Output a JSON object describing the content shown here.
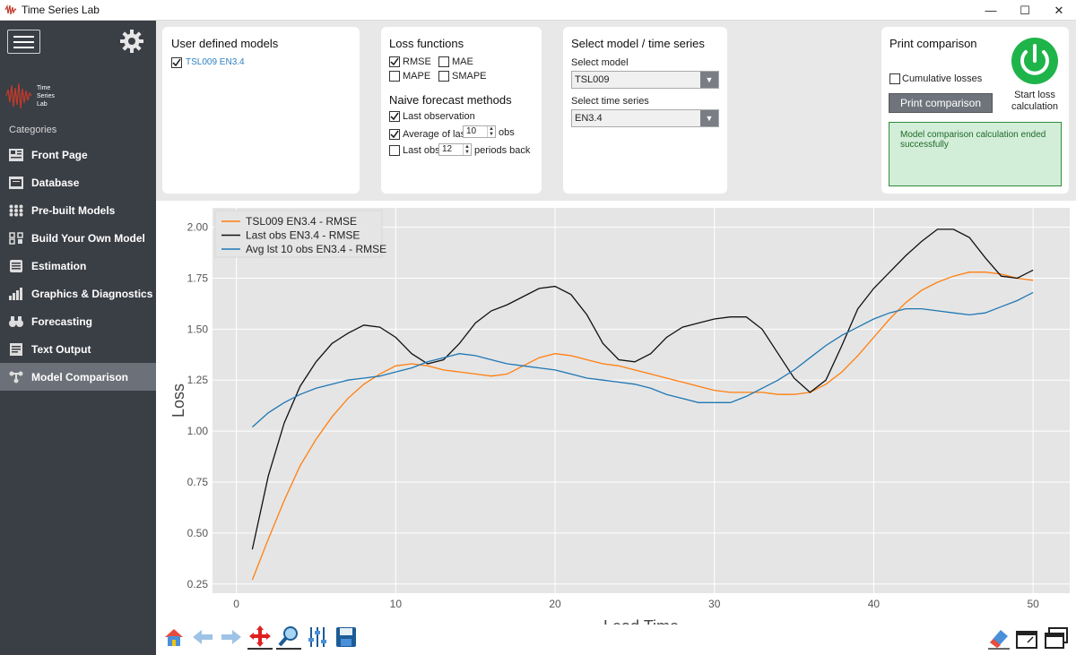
{
  "window": {
    "title": "Time Series Lab",
    "min": "—",
    "max": "☐",
    "close": "✕"
  },
  "sidebar": {
    "logo_text": [
      "Time",
      "Series",
      "Lab"
    ],
    "categories_label": "Categories",
    "items": [
      {
        "label": "Front Page",
        "icon": "front-page-icon"
      },
      {
        "label": "Database",
        "icon": "database-icon"
      },
      {
        "label": "Pre-built Models",
        "icon": "grid-icon"
      },
      {
        "label": "Build Your Own Model",
        "icon": "build-icon"
      },
      {
        "label": "Estimation",
        "icon": "estimation-icon"
      },
      {
        "label": "Graphics & Diagnostics",
        "icon": "bar-chart-icon"
      },
      {
        "label": "Forecasting",
        "icon": "binoculars-icon"
      },
      {
        "label": "Text Output",
        "icon": "text-output-icon"
      },
      {
        "label": "Model Comparison",
        "icon": "model-comparison-icon"
      }
    ]
  },
  "user_models": {
    "title": "User defined models",
    "items": [
      "TSL009 EN3.4"
    ]
  },
  "loss": {
    "title": "Loss functions",
    "rmse": "RMSE",
    "mae": "MAE",
    "mape": "MAPE",
    "smape": "SMAPE",
    "naive_title": "Naive forecast methods",
    "last_obs": "Last observation",
    "avg_last": "Average of last",
    "avg_value": "10",
    "obs": "obs",
    "last_obs_colon": "Last obs:",
    "periods_value": "12",
    "periods_back": "periods back"
  },
  "select": {
    "title": "Select model / time series",
    "model_label": "Select model",
    "model_value": "TSL009",
    "series_label": "Select time series",
    "series_value": "EN3.4"
  },
  "print": {
    "title": "Print comparison",
    "cumulative": "Cumulative losses",
    "button": "Print comparison",
    "start_label": "Start loss calculation",
    "status": "Model comparison calculation ended successfully"
  },
  "chart_data": {
    "type": "line",
    "xlabel": "Lead Time",
    "ylabel": "Loss",
    "xlim": [
      -1.5,
      52.3
    ],
    "ylim": [
      0.205,
      2.095
    ],
    "xticks": [
      0,
      10,
      20,
      30,
      40,
      50
    ],
    "yticks": [
      0.25,
      0.5,
      0.75,
      1.0,
      1.25,
      1.5,
      1.75,
      2.0
    ],
    "ytick_labels": [
      "0.25",
      "0.50",
      "0.75",
      "1.00",
      "1.25",
      "1.50",
      "1.75",
      "2.00"
    ],
    "legend_position": "top-left",
    "x": [
      1,
      2,
      3,
      4,
      5,
      6,
      7,
      8,
      9,
      10,
      11,
      12,
      13,
      14,
      15,
      16,
      17,
      18,
      19,
      20,
      21,
      22,
      23,
      24,
      25,
      26,
      27,
      28,
      29,
      30,
      31,
      32,
      33,
      34,
      35,
      36,
      37,
      38,
      39,
      40,
      41,
      42,
      43,
      44,
      45,
      46,
      47,
      48,
      49,
      50
    ],
    "series": [
      {
        "name": "TSL009 EN3.4 - RMSE",
        "color": "#ff7f0e",
        "values": [
          0.27,
          0.47,
          0.66,
          0.83,
          0.96,
          1.07,
          1.16,
          1.23,
          1.28,
          1.32,
          1.33,
          1.32,
          1.3,
          1.29,
          1.28,
          1.27,
          1.28,
          1.32,
          1.36,
          1.38,
          1.37,
          1.35,
          1.33,
          1.32,
          1.3,
          1.28,
          1.26,
          1.24,
          1.22,
          1.2,
          1.19,
          1.19,
          1.19,
          1.18,
          1.18,
          1.19,
          1.23,
          1.29,
          1.37,
          1.46,
          1.55,
          1.63,
          1.69,
          1.73,
          1.76,
          1.78,
          1.78,
          1.77,
          1.75,
          1.74
        ]
      },
      {
        "name": "Last obs EN3.4 - RMSE",
        "color": "#111111",
        "values": [
          0.42,
          0.78,
          1.04,
          1.22,
          1.34,
          1.43,
          1.48,
          1.52,
          1.51,
          1.46,
          1.38,
          1.33,
          1.35,
          1.43,
          1.53,
          1.59,
          1.62,
          1.66,
          1.7,
          1.71,
          1.67,
          1.57,
          1.43,
          1.35,
          1.34,
          1.38,
          1.46,
          1.51,
          1.53,
          1.55,
          1.56,
          1.56,
          1.5,
          1.38,
          1.26,
          1.19,
          1.25,
          1.42,
          1.6,
          1.7,
          1.78,
          1.86,
          1.93,
          1.99,
          1.99,
          1.95,
          1.85,
          1.76,
          1.75,
          1.79
        ]
      },
      {
        "name": "Avg lst 10 obs EN3.4 - RMSE",
        "color": "#1f77b4",
        "values": [
          1.02,
          1.09,
          1.14,
          1.18,
          1.21,
          1.23,
          1.25,
          1.26,
          1.27,
          1.29,
          1.31,
          1.34,
          1.36,
          1.38,
          1.37,
          1.35,
          1.33,
          1.32,
          1.31,
          1.3,
          1.28,
          1.26,
          1.25,
          1.24,
          1.23,
          1.21,
          1.18,
          1.16,
          1.14,
          1.14,
          1.14,
          1.17,
          1.21,
          1.25,
          1.3,
          1.36,
          1.42,
          1.47,
          1.51,
          1.55,
          1.58,
          1.6,
          1.6,
          1.59,
          1.58,
          1.57,
          1.58,
          1.61,
          1.64,
          1.68
        ]
      }
    ]
  },
  "toolbar": {
    "left": [
      "home-icon",
      "back-arrow-icon",
      "forward-arrow-icon",
      "pan-icon",
      "zoom-icon",
      "configure-icon",
      "save-icon"
    ],
    "right": [
      "eraser-icon",
      "window-icon",
      "window-alt-icon"
    ]
  }
}
